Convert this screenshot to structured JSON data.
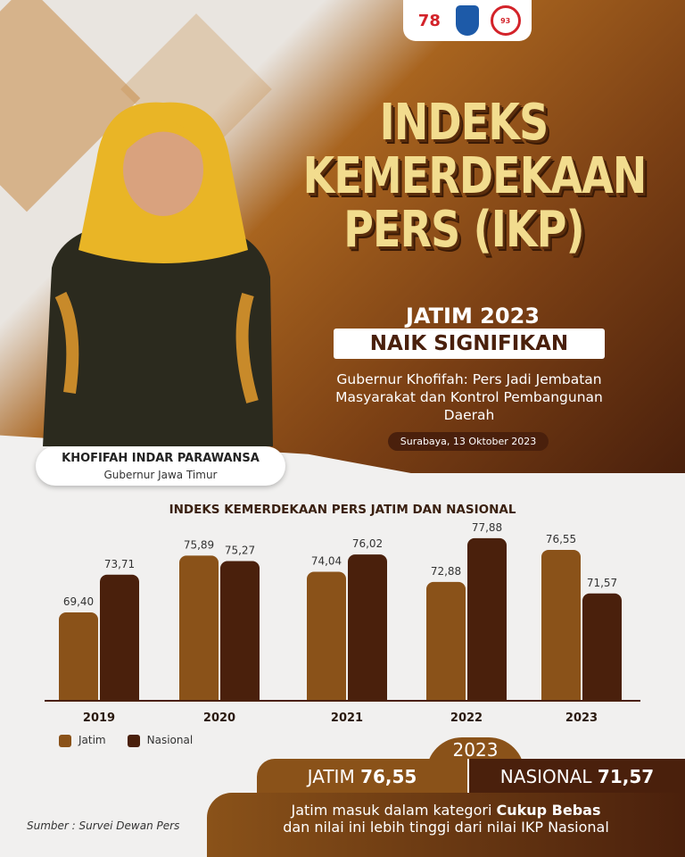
{
  "logos": [
    "78 Provinsi Jawa Timur",
    "Jawa Timur coat of arms",
    "93 Adipura Setda"
  ],
  "title": [
    "INDEKS",
    "KEMERDEKAAN",
    "PERS (IKP)"
  ],
  "subtitle": "JATIM 2023",
  "highlight": "NAIK SIGNIFIKAN",
  "quote": "Gubernur Khofifah: Pers Jadi Jembatan Masyarakat dan Kontrol Pembangunan Daerah",
  "date": "Surabaya, 13 Oktober 2023",
  "person": {
    "name": "KHOFIFAH INDAR PARAWANSA",
    "role": "Gubernur Jawa Timur"
  },
  "colors": {
    "jatim": "#8a5219",
    "nasional": "#4a200c",
    "title": "#f2dc8e"
  },
  "chart_data": {
    "type": "bar",
    "title": "INDEKS KEMERDEKAAN PERS JATIM DAN NASIONAL",
    "categories": [
      "2019",
      "2020",
      "2021",
      "2022",
      "2023"
    ],
    "series": [
      {
        "name": "Jatim",
        "values": [
          69.4,
          75.89,
          74.04,
          72.88,
          76.55
        ],
        "labels": [
          "69,40",
          "75,89",
          "74,04",
          "72,88",
          "76,55"
        ]
      },
      {
        "name": "Nasional",
        "values": [
          73.71,
          75.27,
          76.02,
          77.88,
          71.57
        ],
        "labels": [
          "73,71",
          "75,27",
          "76,02",
          "77,88",
          "71,57"
        ]
      }
    ],
    "ylim": [
      59.3,
      80
    ],
    "grid": false,
    "legend": "bottom-left"
  },
  "summary": {
    "year": "2023",
    "jatim_label": "JATIM",
    "jatim_value": "76,55",
    "nasional_label": "NASIONAL",
    "nasional_value": "71,57",
    "line1_pre": "Jatim masuk dalam kategori ",
    "line1_bold": "Cukup Bebas",
    "line2": "dan nilai ini lebih tinggi dari nilai IKP Nasional"
  },
  "source": "Sumber : Survei Dewan Pers"
}
